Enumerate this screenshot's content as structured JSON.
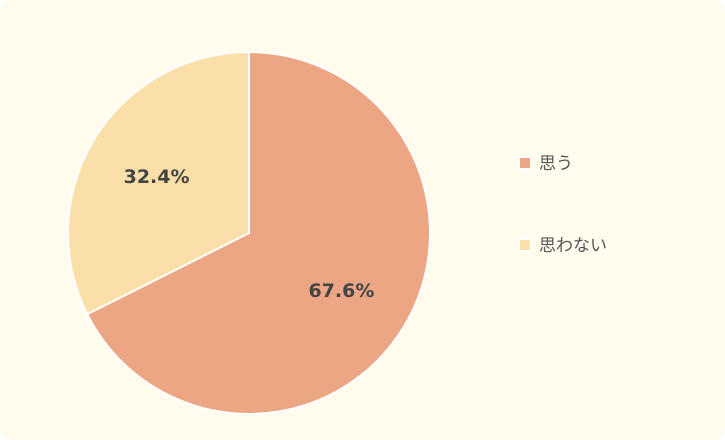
{
  "chart_data": {
    "type": "pie",
    "title": "",
    "start_angle": "top",
    "direction": "clockwise",
    "legend_placement": "right",
    "slices": [
      {
        "name": "思う",
        "value": 67.6,
        "label": "67.6%",
        "color": "#eca683"
      },
      {
        "name": "思わない",
        "value": 32.4,
        "label": "32.4%",
        "color": "#fbdfa9"
      }
    ]
  },
  "colors": {
    "background": "#fffbed",
    "slice_border": "#ffffff"
  }
}
